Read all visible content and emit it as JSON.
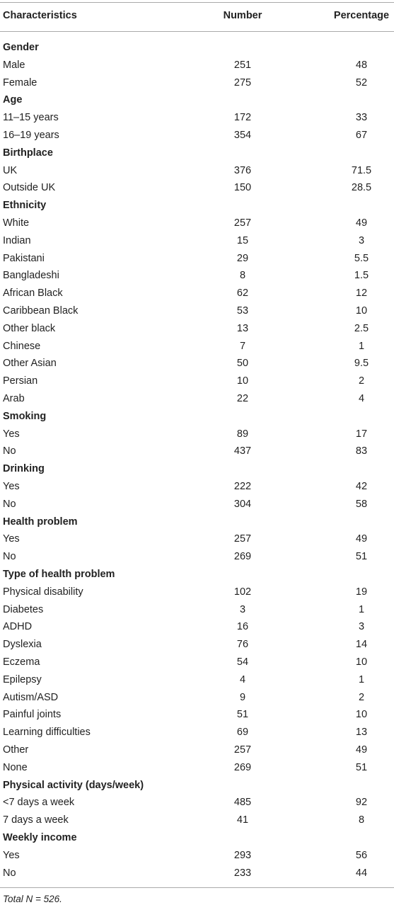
{
  "table": {
    "columns": [
      "Characteristics",
      "Number",
      "Percentage"
    ],
    "sections": [
      {
        "title": "Gender",
        "rows": [
          [
            "Male",
            251,
            48
          ],
          [
            "Female",
            275,
            52
          ]
        ]
      },
      {
        "title": "Age",
        "rows": [
          [
            "11–15 years",
            172,
            33
          ],
          [
            "16–19 years",
            354,
            67
          ]
        ]
      },
      {
        "title": "Birthplace",
        "rows": [
          [
            "UK",
            376,
            71.5
          ],
          [
            "Outside UK",
            150,
            28.5
          ]
        ]
      },
      {
        "title": "Ethnicity",
        "rows": [
          [
            "White",
            257,
            49
          ],
          [
            "Indian",
            15,
            3
          ],
          [
            "Pakistani",
            29,
            5.5
          ],
          [
            "Bangladeshi",
            8,
            1.5
          ],
          [
            "African Black",
            62,
            12
          ],
          [
            "Caribbean Black",
            53,
            10
          ],
          [
            "Other black",
            13,
            2.5
          ],
          [
            "Chinese",
            7,
            1
          ],
          [
            "Other Asian",
            50,
            9.5
          ],
          [
            "Persian",
            10,
            2
          ],
          [
            "Arab",
            22,
            4
          ]
        ]
      },
      {
        "title": "Smoking",
        "rows": [
          [
            "Yes",
            89,
            17
          ],
          [
            "No",
            437,
            83
          ]
        ]
      },
      {
        "title": "Drinking",
        "rows": [
          [
            "Yes",
            222,
            42
          ],
          [
            "No",
            304,
            58
          ]
        ]
      },
      {
        "title": "Health problem",
        "rows": [
          [
            "Yes",
            257,
            49
          ],
          [
            "No",
            269,
            51
          ]
        ]
      },
      {
        "title": "Type of health problem",
        "rows": [
          [
            "Physical disability",
            102,
            19
          ],
          [
            "Diabetes",
            3,
            1
          ],
          [
            "ADHD",
            16,
            3
          ],
          [
            "Dyslexia",
            76,
            14
          ],
          [
            "Eczema",
            54,
            10
          ],
          [
            "Epilepsy",
            4,
            1
          ],
          [
            "Autism/ASD",
            9,
            2
          ],
          [
            "Painful joints",
            51,
            10
          ],
          [
            "Learning difficulties",
            69,
            13
          ],
          [
            "Other",
            257,
            49
          ],
          [
            "None",
            269,
            51
          ]
        ]
      },
      {
        "title": "Physical activity (days/week)",
        "rows": [
          [
            "<7 days a week",
            485,
            92
          ],
          [
            "7 days a week",
            41,
            8
          ]
        ]
      },
      {
        "title": "Weekly income",
        "rows": [
          [
            "Yes",
            293,
            56
          ],
          [
            "No",
            233,
            44
          ]
        ]
      }
    ]
  },
  "footnote": "Total N = 526."
}
